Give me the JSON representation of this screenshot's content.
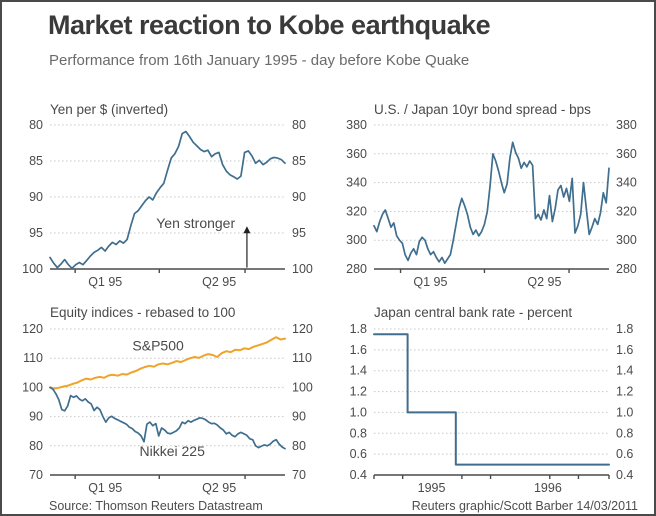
{
  "header": {
    "title": "Market reaction to Kobe earthquake",
    "subtitle": "Performance from 16th January 1995 - day before Kobe Quake"
  },
  "footer": {
    "source": "Source: Thomson Reuters Datastream",
    "credit": "Reuters graphic/Scott Barber 14/03/2011"
  },
  "colors": {
    "line_blue": "#3f6e8e",
    "line_orange": "#efa32b",
    "gridline": "#c8c8c8",
    "axis": "#4a4a4a"
  },
  "chart_data": [
    {
      "type": "line",
      "title": "Yen per $ (inverted)",
      "ylabel": "Yen per $",
      "ylim": [
        100,
        80
      ],
      "grid": "dotted-horizontal",
      "ytick_sides": "both",
      "yticks": [
        {
          "v": 80,
          "label": "80"
        },
        {
          "v": 85,
          "label": "85"
        },
        {
          "v": 90,
          "label": "90"
        },
        {
          "v": 95,
          "label": "95"
        },
        {
          "v": 100,
          "label": "100"
        }
      ],
      "xticks": [
        0.107,
        0.465,
        0.83
      ],
      "xlabels": [
        {
          "text": "Q1 95",
          "f": 0.235
        },
        {
          "text": "Q2 95",
          "f": 0.72
        }
      ],
      "series": [
        {
          "name": "yen-per-dollar",
          "color": "#3f6e8e",
          "width": 1.7,
          "values": [
            98.4,
            99.2,
            99.8,
            99.3,
            98.7,
            99.4,
            99.9,
            99.4,
            99.1,
            99.4,
            98.8,
            98.2,
            97.7,
            97.4,
            97.0,
            97.5,
            96.8,
            96.3,
            96.6,
            96.1,
            96.4,
            95.9,
            94.0,
            92.3,
            91.9,
            91.2,
            90.5,
            90.0,
            90.4,
            89.4,
            88.7,
            88.1,
            86.3,
            84.6,
            84.0,
            83.0,
            81.2,
            80.9,
            81.6,
            82.4,
            82.9,
            83.4,
            83.7,
            83.5,
            84.4,
            84.0,
            83.8,
            85.5,
            86.4,
            86.9,
            87.2,
            87.5,
            87.1,
            83.8,
            83.6,
            84.3,
            85.3,
            84.9,
            85.5,
            85.2,
            84.7,
            84.5,
            84.6,
            84.8,
            85.3
          ]
        }
      ],
      "annotations": [
        {
          "text": "Yen stronger",
          "f": 0.62,
          "v": 94.3
        }
      ],
      "arrows": [
        {
          "f": 0.838,
          "v1": 99.8,
          "v2": 94.2
        }
      ]
    },
    {
      "type": "line",
      "title": "U.S. / Japan 10yr bond spread - bps",
      "ylabel": "bps",
      "ylim": [
        280,
        380
      ],
      "grid": "dotted-horizontal",
      "ytick_sides": "both",
      "yticks": [
        {
          "v": 380,
          "label": "380"
        },
        {
          "v": 360,
          "label": "360"
        },
        {
          "v": 340,
          "label": "340"
        },
        {
          "v": 320,
          "label": "320"
        },
        {
          "v": 300,
          "label": "300"
        },
        {
          "v": 280,
          "label": "280"
        }
      ],
      "xticks": [
        0.113,
        0.47,
        0.83
      ],
      "xlabels": [
        {
          "text": "Q1 95",
          "f": 0.24
        },
        {
          "text": "Q2 95",
          "f": 0.725
        }
      ],
      "series": [
        {
          "name": "us-japan-10yr-spread",
          "color": "#3f6e8e",
          "width": 1.7,
          "values": [
            310,
            306,
            313,
            318,
            321,
            315,
            309,
            312,
            303,
            300,
            298,
            290,
            286,
            291,
            294,
            290,
            299,
            302,
            300,
            294,
            290,
            292,
            288,
            285,
            288,
            284,
            287,
            290,
            300,
            311,
            322,
            329,
            324,
            318,
            309,
            304,
            307,
            303,
            306,
            311,
            320,
            338,
            360,
            355,
            348,
            340,
            333,
            339,
            357,
            368,
            361,
            357,
            350,
            354,
            351,
            355,
            352,
            315,
            318,
            314,
            321,
            315,
            331,
            313,
            322,
            335,
            338,
            330,
            336,
            327,
            343,
            305,
            310,
            318,
            340,
            322,
            304,
            309,
            315,
            311,
            319,
            333,
            326,
            350
          ]
        }
      ],
      "annotations": [],
      "arrows": []
    },
    {
      "type": "line",
      "title": "Equity indices - rebased to 100",
      "ylabel": "Index (rebased to 100)",
      "ylim": [
        70,
        120
      ],
      "grid": "dotted-horizontal",
      "ytick_sides": "both",
      "yticks": [
        {
          "v": 120,
          "label": "120"
        },
        {
          "v": 110,
          "label": "110"
        },
        {
          "v": 100,
          "label": "100"
        },
        {
          "v": 90,
          "label": "90"
        },
        {
          "v": 80,
          "label": "80"
        },
        {
          "v": 70,
          "label": "70"
        }
      ],
      "xticks": [
        0.107,
        0.465,
        0.83
      ],
      "xlabels": [
        {
          "text": "Q1 95",
          "f": 0.235
        },
        {
          "text": "Q2 95",
          "f": 0.72
        }
      ],
      "series": [
        {
          "name": "sp500",
          "color": "#efa32b",
          "width": 2,
          "values": [
            100,
            99.6,
            99.9,
            100.3,
            100.6,
            101.2,
            101.6,
            102.4,
            103.0,
            102.7,
            103.3,
            103.6,
            103.3,
            104.1,
            104.3,
            104.0,
            104.6,
            104.4,
            105.1,
            105.6,
            106.4,
            107.0,
            107.4,
            107.1,
            107.9,
            108.2,
            107.9,
            108.4,
            109.0,
            108.7,
            109.4,
            110.0,
            110.4,
            110.1,
            110.9,
            111.4,
            111.1,
            110.4,
            111.7,
            112.4,
            112.1,
            112.9,
            112.7,
            113.4,
            113.1,
            113.9,
            114.4,
            114.9,
            115.4,
            116.3,
            117.2,
            116.4,
            116.7
          ]
        },
        {
          "name": "nikkei225",
          "color": "#3f6e8e",
          "width": 1.7,
          "values": [
            100,
            99.4,
            97.8,
            95.8,
            92.4,
            92.0,
            93.6,
            97.2,
            96.6,
            97.1,
            96.0,
            95.4,
            96.1,
            95.0,
            94.4,
            92.1,
            93.2,
            92.4,
            90.0,
            88.1,
            89.6,
            90.1,
            89.4,
            88.9,
            88.4,
            87.9,
            87.4,
            86.4,
            85.9,
            84.9,
            84.4,
            83.4,
            81.4,
            87.4,
            88.1,
            86.9,
            87.6,
            83.4,
            86.1,
            85.4,
            84.4,
            84.1,
            84.6,
            85.1,
            86.1,
            88.1,
            87.6,
            88.6,
            88.1,
            88.7,
            89.1,
            89.6,
            89.4,
            88.9,
            88.1,
            87.6,
            87.7,
            87.1,
            86.1,
            85.4,
            84.1,
            84.6,
            83.6,
            83.1,
            84.1,
            84.6,
            84.1,
            83.6,
            82.4,
            82.1,
            80.0,
            79.4,
            79.9,
            80.3,
            80.0,
            80.6,
            81.6,
            82.1,
            80.6,
            79.6,
            79.0
          ]
        }
      ],
      "annotations": [
        {
          "text": "S&P500",
          "f": 0.46,
          "v": 112.6
        },
        {
          "text": "Nikkei 225",
          "f": 0.52,
          "v": 76.5
        }
      ],
      "arrows": []
    },
    {
      "type": "line",
      "title": "Japan central bank rate - percent",
      "ylabel": "percent",
      "ylim": [
        0.4,
        1.8
      ],
      "grid": "dotted-horizontal",
      "ytick_sides": "both",
      "yticks": [
        {
          "v": 1.8,
          "label": "1.8"
        },
        {
          "v": 1.6,
          "label": "1.6"
        },
        {
          "v": 1.4,
          "label": "1.4"
        },
        {
          "v": 1.2,
          "label": "1.2"
        },
        {
          "v": 1.0,
          "label": "1.0"
        },
        {
          "v": 0.8,
          "label": "0.8"
        },
        {
          "v": 0.6,
          "label": "0.6"
        },
        {
          "v": 0.4,
          "label": "0.4"
        }
      ],
      "xticks": [
        0,
        0.122,
        0.374,
        0.496,
        0.748,
        0.87,
        1
      ],
      "xlabels": [
        {
          "text": "1995",
          "f": 0.245
        },
        {
          "text": "1996",
          "f": 0.74
        }
      ],
      "series": [
        {
          "name": "japan-central-bank-rate",
          "color": "#3f6e8e",
          "width": 2,
          "points": [
            [
              0,
              1.75
            ],
            [
              0.143,
              1.75
            ],
            [
              0.143,
              1.0
            ],
            [
              0.348,
              1.0
            ],
            [
              0.348,
              0.5
            ],
            [
              1,
              0.5
            ]
          ]
        }
      ],
      "annotations": [],
      "arrows": []
    }
  ]
}
